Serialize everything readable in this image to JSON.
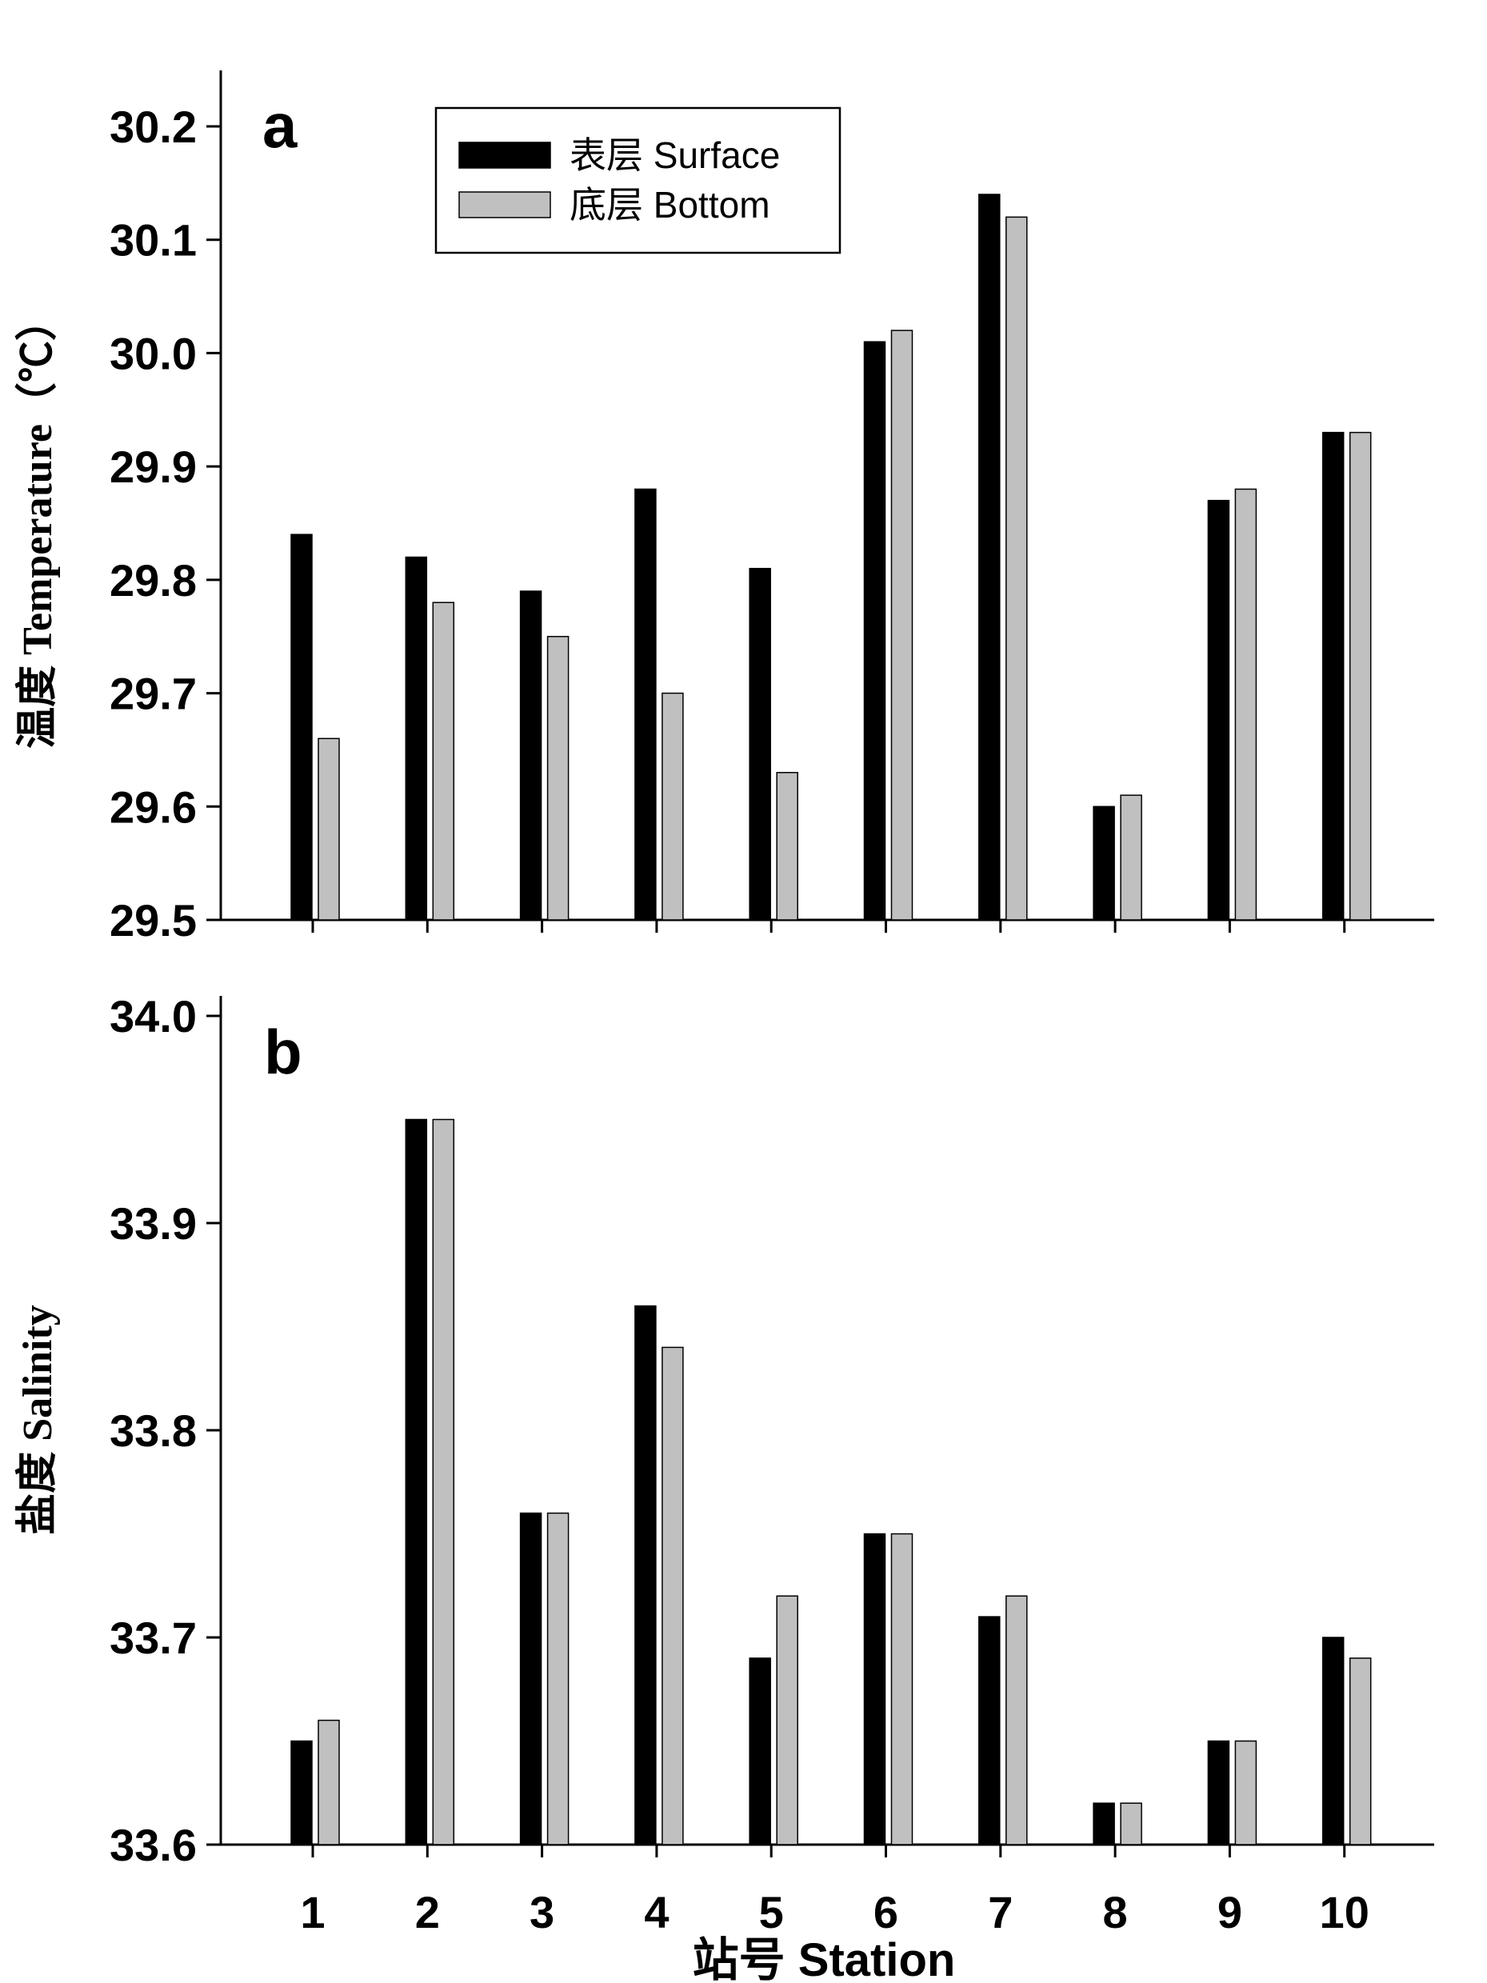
{
  "chart_data": [
    {
      "type": "bar",
      "panel_label": "a",
      "ylabel": "温度 Temperature（℃）",
      "xlabel": "",
      "categories": [
        "1",
        "2",
        "3",
        "4",
        "5",
        "6",
        "7",
        "8",
        "9",
        "10"
      ],
      "ylim": [
        29.5,
        30.25
      ],
      "yticks": [
        "29.5",
        "29.6",
        "29.7",
        "29.8",
        "29.9",
        "30.0",
        "30.1",
        "30.2"
      ],
      "series": [
        {
          "name": "表层  Surface",
          "color": "#000000",
          "values": [
            29.84,
            29.82,
            29.79,
            29.88,
            29.81,
            30.01,
            30.14,
            29.6,
            29.87,
            29.93
          ]
        },
        {
          "name": "底层  Bottom",
          "color": "#c0c0c0",
          "values": [
            29.66,
            29.78,
            29.75,
            29.7,
            29.63,
            30.02,
            30.12,
            29.61,
            29.88,
            29.93
          ]
        }
      ],
      "legend": "top-left",
      "grid": false
    },
    {
      "type": "bar",
      "panel_label": "b",
      "ylabel": "盐度 Salinity",
      "xlabel": "站号 Station",
      "categories": [
        "1",
        "2",
        "3",
        "4",
        "5",
        "6",
        "7",
        "8",
        "9",
        "10"
      ],
      "ylim": [
        33.6,
        34.01
      ],
      "yticks": [
        "33.6",
        "33.7",
        "33.8",
        "33.9",
        "34.0"
      ],
      "series": [
        {
          "name": "Surface",
          "color": "#000000",
          "values": [
            33.65,
            33.95,
            33.76,
            33.86,
            33.69,
            33.75,
            33.71,
            33.62,
            33.65,
            33.7
          ]
        },
        {
          "name": "Bottom",
          "color": "#c0c0c0",
          "values": [
            33.66,
            33.95,
            33.76,
            33.84,
            33.72,
            33.75,
            33.72,
            33.62,
            33.65,
            33.69
          ]
        }
      ],
      "grid": false
    }
  ]
}
